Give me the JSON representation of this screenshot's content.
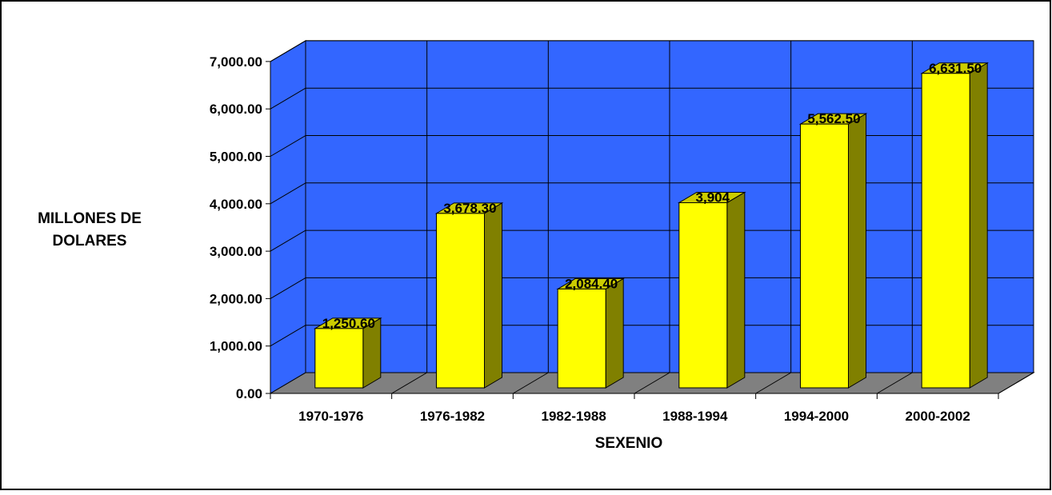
{
  "chart_data": {
    "type": "bar",
    "title": "",
    "xlabel": "SEXENIO",
    "ylabel_lines": [
      "MILLONES DE",
      "DOLARES"
    ],
    "categories": [
      "1970-1976",
      "1976-1982",
      "1982-1988",
      "1988-1994",
      "1994-2000",
      "2000-2002"
    ],
    "values": [
      1250.6,
      3678.3,
      2084.4,
      3904,
      5562.5,
      6631.5
    ],
    "data_labels": [
      "1,250.60",
      "3,678.30",
      "2,084.40",
      "3,904",
      "5,562.50",
      "6,631.50"
    ],
    "ylim": [
      0,
      7000
    ],
    "y_ticks": [
      0,
      1000,
      2000,
      3000,
      4000,
      5000,
      6000,
      7000
    ],
    "y_tick_labels": [
      "0.00",
      "1,000.00",
      "2,000.00",
      "3,000.00",
      "4,000.00",
      "5,000.00",
      "6,000.00",
      "7,000.00"
    ],
    "grid": true,
    "style": "3d",
    "colors": {
      "wall": "#3366FF",
      "floor": "#808080",
      "bar_front": "#FFFF00",
      "bar_side": "#808000",
      "bar_top": "#CCCC00",
      "gridline": "#000000",
      "border": "#000000"
    }
  }
}
